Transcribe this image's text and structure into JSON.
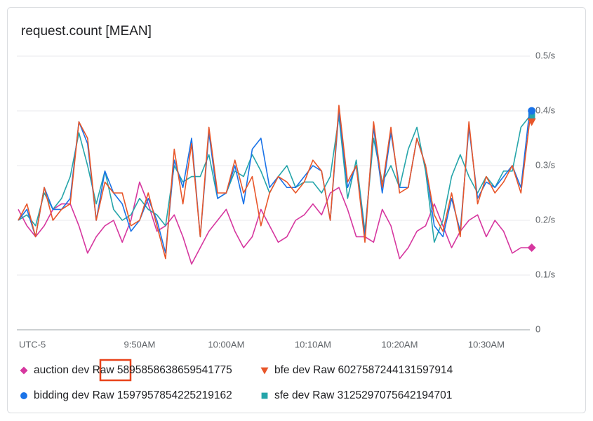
{
  "chart_data": {
    "type": "line",
    "title": "request.count [MEAN]",
    "timezone_label": "UTC-5",
    "categories": [
      null,
      null,
      null,
      null,
      null,
      null,
      null,
      null,
      null,
      null,
      null,
      null,
      null,
      null,
      "9:50AM",
      null,
      null,
      null,
      null,
      null,
      null,
      null,
      null,
      null,
      "10:00AM",
      null,
      null,
      null,
      null,
      null,
      null,
      null,
      null,
      null,
      "10:10AM",
      null,
      null,
      null,
      null,
      null,
      null,
      null,
      null,
      null,
      "10:20AM",
      null,
      null,
      null,
      null,
      null,
      null,
      null,
      null,
      null,
      "10:30AM",
      null,
      null,
      null,
      null,
      null
    ],
    "ylim": [
      0,
      0.5
    ],
    "yticks": [
      0,
      {
        "value": 0.1,
        "label": "0.1/s"
      },
      {
        "value": 0.2,
        "label": "0.2/s"
      },
      {
        "value": 0.3,
        "label": "0.3/s"
      },
      {
        "value": 0.4,
        "label": "0.4/s"
      },
      {
        "value": 0.5,
        "label": "0.5/s"
      }
    ],
    "grid": true,
    "series": [
      {
        "name": "auction dev Raw 5895858638659541775",
        "color": "#d6379f",
        "marker": "diamond",
        "values": [
          0.22,
          0.19,
          0.17,
          0.19,
          0.22,
          0.23,
          0.23,
          0.19,
          0.14,
          0.17,
          0.19,
          0.2,
          0.16,
          0.2,
          0.27,
          0.23,
          0.18,
          0.19,
          0.21,
          0.17,
          0.12,
          0.15,
          0.18,
          0.2,
          0.22,
          0.18,
          0.15,
          0.17,
          0.22,
          0.19,
          0.16,
          0.17,
          0.2,
          0.21,
          0.23,
          0.21,
          0.25,
          0.26,
          0.22,
          0.17,
          0.17,
          0.16,
          0.22,
          0.19,
          0.13,
          0.15,
          0.18,
          0.19,
          0.23,
          0.19,
          0.15,
          0.18,
          0.2,
          0.21,
          0.17,
          0.2,
          0.18,
          0.14,
          0.15,
          0.15
        ]
      },
      {
        "name": "bfe dev Raw 6027587244131597914",
        "color": "#e8562a",
        "marker": "triangle",
        "values": [
          0.2,
          0.23,
          0.17,
          0.26,
          0.2,
          0.22,
          0.23,
          0.38,
          0.35,
          0.2,
          0.27,
          0.25,
          0.25,
          0.19,
          0.2,
          0.25,
          0.19,
          0.13,
          0.33,
          0.23,
          0.34,
          0.17,
          0.37,
          0.25,
          0.25,
          0.31,
          0.25,
          0.28,
          0.19,
          0.25,
          0.28,
          0.27,
          0.25,
          0.27,
          0.31,
          0.29,
          0.2,
          0.41,
          0.27,
          0.3,
          0.16,
          0.38,
          0.26,
          0.37,
          0.25,
          0.26,
          0.35,
          0.3,
          0.21,
          0.18,
          0.25,
          0.17,
          0.38,
          0.23,
          0.28,
          0.25,
          0.27,
          0.3,
          0.25,
          0.38
        ]
      },
      {
        "name": "bidding dev Raw 1597957854225219162",
        "color": "#1a73e8",
        "marker": "circle",
        "values": [
          0.2,
          0.22,
          0.17,
          0.26,
          0.22,
          0.22,
          0.24,
          0.38,
          0.34,
          0.2,
          0.29,
          0.25,
          0.23,
          0.18,
          0.2,
          0.24,
          0.2,
          0.14,
          0.31,
          0.26,
          0.35,
          0.17,
          0.36,
          0.24,
          0.25,
          0.3,
          0.23,
          0.33,
          0.35,
          0.26,
          0.28,
          0.26,
          0.26,
          0.28,
          0.3,
          0.29,
          0.2,
          0.4,
          0.26,
          0.3,
          0.17,
          0.37,
          0.25,
          0.36,
          0.26,
          0.26,
          0.35,
          0.3,
          0.19,
          0.17,
          0.24,
          0.18,
          0.37,
          0.24,
          0.27,
          0.26,
          0.28,
          0.3,
          0.26,
          0.4
        ]
      },
      {
        "name": "sfe dev Raw 3125297075642194701",
        "color": "#25a5aa",
        "marker": "square",
        "values": [
          0.2,
          0.21,
          0.19,
          0.25,
          0.22,
          0.24,
          0.28,
          0.36,
          0.3,
          0.23,
          0.29,
          0.22,
          0.2,
          0.21,
          0.24,
          0.22,
          0.21,
          0.19,
          0.3,
          0.27,
          0.28,
          0.28,
          0.32,
          0.24,
          0.25,
          0.29,
          0.28,
          0.32,
          0.29,
          0.25,
          0.28,
          0.3,
          0.26,
          0.27,
          0.27,
          0.25,
          0.28,
          0.39,
          0.24,
          0.31,
          0.18,
          0.35,
          0.27,
          0.3,
          0.26,
          0.33,
          0.37,
          0.29,
          0.16,
          0.2,
          0.28,
          0.32,
          0.28,
          0.25,
          0.28,
          0.26,
          0.29,
          0.29,
          0.37,
          0.39
        ]
      }
    ]
  }
}
